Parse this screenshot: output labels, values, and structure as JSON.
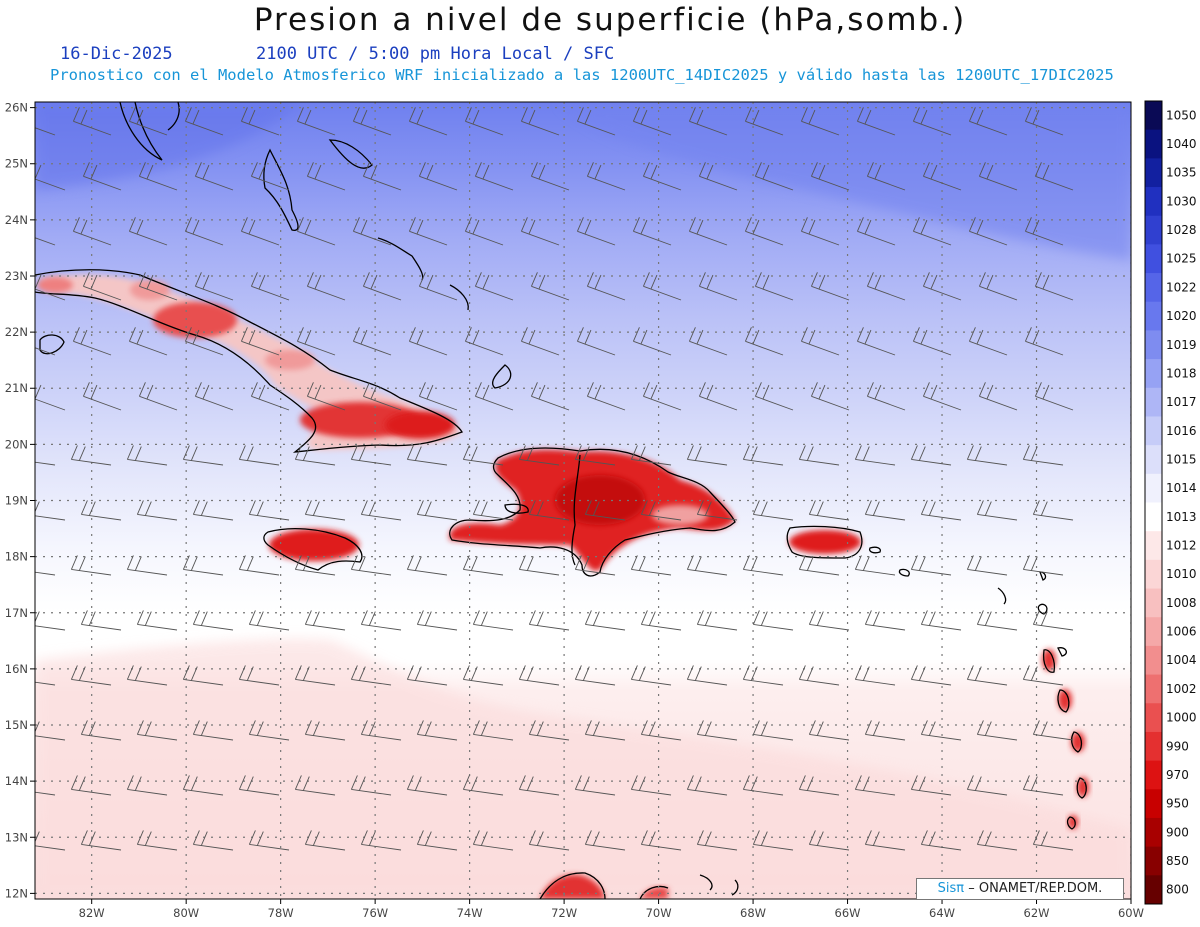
{
  "header": {
    "title": "Presion a nivel de superficie (hPa,somb.)",
    "date": "16-Dic-2025",
    "time_info": "2100 UTC / 5:00 pm Hora Local / SFC",
    "forecast_info": "Pronostico con el Modelo Atmosferico WRF inicializado a las 1200UTC_14DIC2025 y válido hasta las  1200UTC_17DIC2025"
  },
  "map": {
    "lon_range": [
      -83.2,
      -60
    ],
    "lat_range": [
      11.9,
      26.1
    ],
    "lat_labels": [
      "26N",
      "25N",
      "24N",
      "23N",
      "22N",
      "21N",
      "20N",
      "19N",
      "18N",
      "17N",
      "16N",
      "15N",
      "14N",
      "13N",
      "12N"
    ],
    "lon_labels": [
      "82W",
      "80W",
      "78W",
      "76W",
      "74W",
      "72W",
      "70W",
      "68W",
      "66W",
      "64W",
      "62W",
      "60W"
    ],
    "high_pressure_color": "#6f80ef",
    "low_pressure_color": "#e0141c",
    "wind_barb_color": "#555555"
  },
  "colorbar": {
    "levels": [
      "1050",
      "1040",
      "1035",
      "1030",
      "1028",
      "1025",
      "1022",
      "1020",
      "1019",
      "1018",
      "1017",
      "1016",
      "1015",
      "1014",
      "1013",
      "1012",
      "1010",
      "1008",
      "1006",
      "1004",
      "1002",
      "1000",
      "990",
      "970",
      "950",
      "900",
      "850",
      "800"
    ],
    "colors": [
      "#0a0a55",
      "#0a1280",
      "#1220a0",
      "#2030c0",
      "#3040d0",
      "#4050e0",
      "#5565e8",
      "#6878ee",
      "#7e8cf0",
      "#96a2f4",
      "#aeb6f6",
      "#c6ccf8",
      "#dcdffa",
      "#f0f1fd",
      "#ffffff",
      "#fde8e8",
      "#fbd6d6",
      "#f8c0c0",
      "#f5a8a8",
      "#f28e8e",
      "#ee7070",
      "#ea5050",
      "#e43030",
      "#dd1212",
      "#c80000",
      "#a80000",
      "#880000",
      "#660000"
    ]
  },
  "credit": {
    "logo": "Sisπ",
    "text": "– ONAMET/REP.DOM."
  }
}
